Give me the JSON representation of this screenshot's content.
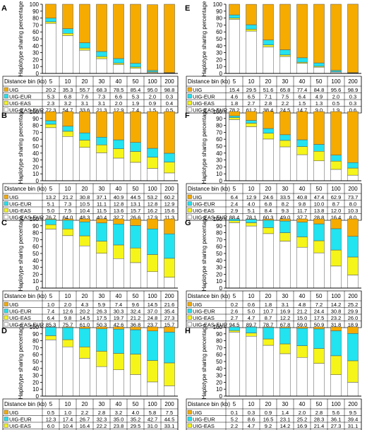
{
  "figure": {
    "y_axis_label": "Haplotype sharing percentage"
  },
  "colors": {
    "UIG": "#F5AB00",
    "UIG-EUR": "#22E3F0",
    "UIG-EAS": "#F5F51A",
    "UIG-EAS-EUR": "#FFFFFF"
  },
  "chart_data": [
    {
      "type": "bar",
      "stacked": true,
      "panel": "A",
      "categories": [
        "5",
        "10",
        "20",
        "30",
        "40",
        "50",
        "100",
        "200"
      ],
      "xlabel": "Distance bin (kb)",
      "ylabel": "Haplotype sharing percentage",
      "ylim": [
        0,
        100
      ],
      "yticks": [
        0,
        10,
        20,
        30,
        40,
        50,
        60,
        70,
        80,
        90,
        100
      ],
      "series": [
        {
          "name": "UIG",
          "values": [
            20.2,
            35.3,
            55.7,
            68.3,
            78.5,
            85.4,
            95.0,
            98.8
          ]
        },
        {
          "name": "UIG-EUR",
          "values": [
            5.3,
            6.8,
            7.6,
            7.3,
            6.6,
            5.3,
            2.0,
            0.3
          ]
        },
        {
          "name": "UIG-EAS",
          "values": [
            2.3,
            3.2,
            3.1,
            3.1,
            2.0,
            1.9,
            0.9,
            0.4
          ]
        },
        {
          "name": "UIG-EAS-EUR",
          "values": [
            72.3,
            54.7,
            33.6,
            21.3,
            12.9,
            7.4,
            1.5,
            0.5
          ]
        }
      ]
    },
    {
      "type": "bar",
      "stacked": true,
      "panel": "B",
      "categories": [
        "5",
        "10",
        "20",
        "30",
        "40",
        "50",
        "100",
        "200"
      ],
      "xlabel": "Distance bin (kb)",
      "ylabel": "Haplotype sharing percentage",
      "ylim": [
        0,
        100
      ],
      "yticks": [
        0,
        10,
        20,
        30,
        40,
        50,
        60,
        70,
        80,
        90,
        100
      ],
      "series": [
        {
          "name": "UIG",
          "values": [
            13.2,
            21.2,
            30.8,
            37.1,
            40.9,
            44.5,
            53.2,
            60.2
          ]
        },
        {
          "name": "UIG-EUR",
          "values": [
            5.1,
            7.3,
            10.5,
            11.1,
            12.8,
            13.1,
            12.8,
            12.9
          ]
        },
        {
          "name": "UIG-EAS",
          "values": [
            5.0,
            7.5,
            10.4,
            11.5,
            13.6,
            15.7,
            16.2,
            15.6
          ]
        },
        {
          "name": "UIG-EAS-EUR",
          "values": [
            76.7,
            64.0,
            48.3,
            40.4,
            32.7,
            26.6,
            17.9,
            11.3
          ]
        }
      ]
    },
    {
      "type": "bar",
      "stacked": true,
      "panel": "C",
      "categories": [
        "5",
        "10",
        "20",
        "30",
        "40",
        "50",
        "100",
        "200"
      ],
      "xlabel": "Distance bin (kb)",
      "ylabel": "Haplotype sharing percentage",
      "ylim": [
        0,
        100
      ],
      "yticks": [
        0,
        10,
        20,
        30,
        40,
        50,
        60,
        70,
        80,
        90,
        100
      ],
      "series": [
        {
          "name": "UIG",
          "values": [
            1.0,
            2.0,
            4.3,
            5.9,
            7.4,
            9.6,
            14.5,
            21.6
          ]
        },
        {
          "name": "UIG-EUR",
          "values": [
            7.4,
            12.6,
            20.2,
            26.3,
            30.3,
            32.4,
            37.0,
            35.4
          ]
        },
        {
          "name": "UIG-EAS",
          "values": [
            6.4,
            9.8,
            14.5,
            17.5,
            19.7,
            21.2,
            24.8,
            27.3
          ]
        },
        {
          "name": "UIG-EAS-EUR",
          "values": [
            85.3,
            75.7,
            61.0,
            50.3,
            42.6,
            36.8,
            23.7,
            15.7
          ]
        }
      ]
    },
    {
      "type": "bar",
      "stacked": true,
      "panel": "D",
      "categories": [
        "5",
        "10",
        "20",
        "30",
        "40",
        "50",
        "100",
        "200"
      ],
      "xlabel": "Distance bin (kb)",
      "ylabel": "Haplotype sharing percentage",
      "ylim": [
        0,
        100
      ],
      "yticks": [
        0,
        10,
        20,
        30,
        40,
        50,
        60,
        70,
        80,
        90,
        100
      ],
      "series": [
        {
          "name": "UIG",
          "values": [
            0.5,
            1.0,
            2.2,
            2.8,
            3.2,
            4.0,
            5.8,
            7.5
          ]
        },
        {
          "name": "UIG-EUR",
          "values": [
            12.3,
            17.4,
            26.7,
            32.3,
            35.0,
            35.2,
            42.7,
            44.5
          ]
        },
        {
          "name": "UIG-EAS",
          "values": [
            6.0,
            10.4,
            16.4,
            22.2,
            23.8,
            29.5,
            31.0,
            33.1
          ]
        },
        {
          "name": "UIG-EAS-EUR",
          "values": [
            81.3,
            71.2,
            54.7,
            42.7,
            38.0,
            31.2,
            20.5,
            14.9
          ]
        }
      ]
    },
    {
      "type": "bar",
      "stacked": true,
      "panel": "E",
      "categories": [
        "5",
        "10",
        "20",
        "30",
        "40",
        "50",
        "100",
        "200"
      ],
      "xlabel": "Distance bin (kb)",
      "ylabel": "Haplotype sharing percentage",
      "ylim": [
        0,
        100
      ],
      "yticks": [
        0,
        10,
        20,
        30,
        40,
        50,
        60,
        70,
        80,
        90,
        100
      ],
      "series": [
        {
          "name": "UIG",
          "values": [
            15.4,
            29.5,
            51.6,
            65.8,
            77.4,
            84.8,
            95.6,
            98.9
          ]
        },
        {
          "name": "UIG-EUR",
          "values": [
            4.6,
            6.5,
            7.1,
            7.5,
            6.4,
            4.9,
            2.0,
            0.3
          ]
        },
        {
          "name": "UIG-EAS",
          "values": [
            1.8,
            2.7,
            2.8,
            2.2,
            1.5,
            1.3,
            0.5,
            0.3
          ]
        },
        {
          "name": "UIG-EAS-EUR",
          "values": [
            78.2,
            61.2,
            38.4,
            24.5,
            14.7,
            9.0,
            1.9,
            0.6
          ]
        }
      ]
    },
    {
      "type": "bar",
      "stacked": true,
      "panel": "F",
      "categories": [
        "5",
        "10",
        "20",
        "30",
        "40",
        "50",
        "100",
        "200"
      ],
      "xlabel": "Distance bin (kb)",
      "ylabel": "Haplotype sharing percentage",
      "ylim": [
        0,
        100
      ],
      "yticks": [
        0,
        10,
        20,
        30,
        40,
        50,
        60,
        70,
        80,
        90,
        100
      ],
      "series": [
        {
          "name": "UIG",
          "values": [
            6.4,
            12.9,
            24.6,
            33.5,
            40.8,
            47.4,
            62.9,
            73.7
          ]
        },
        {
          "name": "UIG-EUR",
          "values": [
            2.4,
            4.0,
            6.8,
            8.2,
            9.8,
            10.0,
            8.7,
            8.0
          ]
        },
        {
          "name": "UIG-EAS",
          "values": [
            2.9,
            5.1,
            8.4,
            9.3,
            11.7,
            13.8,
            12.0,
            10.3
          ]
        },
        {
          "name": "UIG-EAS-EUR",
          "values": [
            88.4,
            78.1,
            60.3,
            49.0,
            37.7,
            28.8,
            16.4,
            8.0
          ]
        }
      ]
    },
    {
      "type": "bar",
      "stacked": true,
      "panel": "G",
      "categories": [
        "5",
        "10",
        "20",
        "30",
        "40",
        "50",
        "100",
        "200"
      ],
      "xlabel": "Distance bin (kb)",
      "ylabel": "Haplotype sharing percentage",
      "ylim": [
        0,
        100
      ],
      "yticks": [
        0,
        10,
        20,
        30,
        40,
        50,
        60,
        70,
        80,
        90,
        100
      ],
      "series": [
        {
          "name": "UIG",
          "values": [
            0.2,
            0.6,
            1.8,
            3.1,
            4.8,
            7.2,
            14.2,
            25.2
          ]
        },
        {
          "name": "UIG-EUR",
          "values": [
            2.6,
            5.0,
            10.7,
            16.9,
            21.2,
            24.4,
            30.8,
            29.9
          ]
        },
        {
          "name": "UIG-EAS",
          "values": [
            2.7,
            4.7,
            8.7,
            12.2,
            15.0,
            17.5,
            23.2,
            26.0
          ]
        },
        {
          "name": "UIG-EAS-EUR",
          "values": [
            94.5,
            89.7,
            78.7,
            67.8,
            59.0,
            50.9,
            31.8,
            18.9
          ]
        }
      ]
    },
    {
      "type": "bar",
      "stacked": true,
      "panel": "H",
      "categories": [
        "5",
        "10",
        "20",
        "30",
        "40",
        "50",
        "100",
        "200"
      ],
      "xlabel": "Distance bin (kb)",
      "ylabel": "Haplotype sharing percentage",
      "ylim": [
        0,
        100
      ],
      "yticks": [
        0,
        10,
        20,
        30,
        40,
        50,
        60,
        70,
        80,
        90,
        100
      ],
      "series": [
        {
          "name": "UIG",
          "values": [
            0.1,
            0.3,
            0.9,
            1.4,
            2.0,
            2.8,
            5.6,
            9.5
          ]
        },
        {
          "name": "UIG-EUR",
          "values": [
            5.2,
            8.6,
            16.5,
            23.1,
            25.2,
            28.3,
            36.1,
            39.4
          ]
        },
        {
          "name": "UIG-EAS",
          "values": [
            2.2,
            4.7,
            9.2,
            14.2,
            16.9,
            21.4,
            27.3,
            31.1
          ]
        },
        {
          "name": "UIG-EAS-EUR",
          "values": [
            92.5,
            86.5,
            73.4,
            61.3,
            55.9,
            47.4,
            31.0,
            20.0
          ]
        }
      ]
    }
  ]
}
